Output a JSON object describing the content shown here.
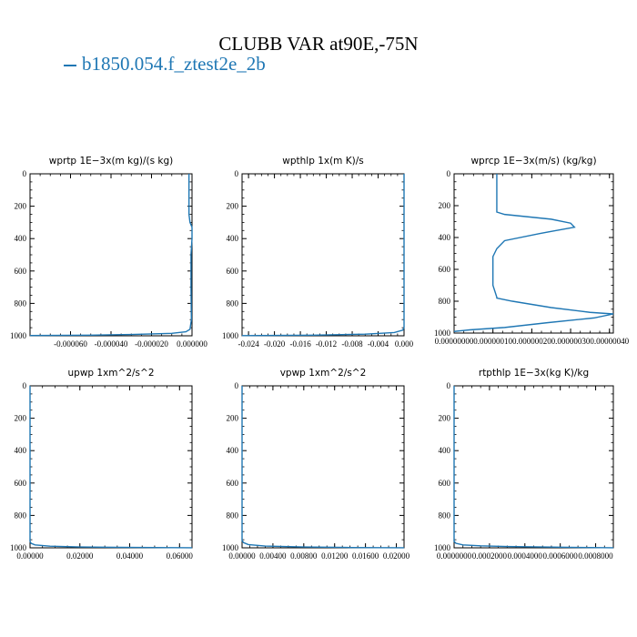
{
  "title": "CLUBB VAR at90E,-75N",
  "legend": {
    "label": "b1850.054.f_ztest2e_2b",
    "color": "#1f77b4"
  },
  "chart_data": [
    {
      "type": "line",
      "title": "wprtp  1E−3x(m kg)/(s kg)",
      "xlim": [
        -8e-05,
        0.0
      ],
      "ylim": [
        1000,
        0
      ],
      "xticks": [
        -6e-05,
        -4e-05,
        -2e-05,
        0.0
      ],
      "xtick_labels": [
        "-0.000060",
        "-0.000040",
        "-0.000020",
        "0.000000"
      ],
      "yticks": [
        0,
        200,
        400,
        600,
        800,
        1000
      ],
      "ytick_labels": [
        "0",
        "200",
        "400",
        "600",
        "800",
        "1000"
      ],
      "series": [
        {
          "x": [
            -1.5e-06,
            -1.5e-06,
            -1.5e-06,
            -1e-06,
            0.0,
            0.0,
            -5e-07,
            -5e-07,
            -3e-07,
            -1e-06,
            -3e-06,
            -1e-05,
            -3e-05,
            -5e-05,
            -8e-05
          ],
          "y": [
            0,
            100,
            250,
            300,
            330,
            400,
            500,
            700,
            900,
            960,
            975,
            985,
            992,
            996,
            998
          ]
        }
      ]
    },
    {
      "type": "line",
      "title": "wpthlp  1x(m K)/s",
      "xlim": [
        -0.025,
        0.0
      ],
      "ylim": [
        1000,
        0
      ],
      "xticks": [
        -0.024,
        -0.02,
        -0.016,
        -0.012,
        -0.008,
        -0.004,
        0.0
      ],
      "xtick_labels": [
        "-0.024",
        "-0.020",
        "-0.016",
        "-0.012",
        "-0.008",
        "-0.004",
        "0.000"
      ],
      "yticks": [
        0,
        200,
        400,
        600,
        800,
        1000
      ],
      "ytick_labels": [
        "0",
        "200",
        "400",
        "600",
        "800",
        "1000"
      ],
      "series": [
        {
          "x": [
            0.0,
            0.0,
            0.0,
            -0.0002,
            -0.0015,
            -0.006,
            -0.014,
            -0.025
          ],
          "y": [
            0,
            500,
            950,
            965,
            980,
            990,
            996,
            999
          ]
        }
      ]
    },
    {
      "type": "line",
      "title": "wprcp  1E−3x(m/s) (kg/kg)",
      "xlim": [
        0.0,
        4.1e-07
      ],
      "ylim": [
        1000,
        0
      ],
      "xticks": [
        0.0,
        1e-07,
        2e-07,
        3e-07,
        4e-07
      ],
      "xtick_labels": [
        "0.00000000",
        "0.00000010",
        "0.00000020",
        "0.00000030",
        "0.00000040"
      ],
      "yticks": [
        0,
        200,
        400,
        600,
        800,
        1000
      ],
      "ytick_labels": [
        "0",
        "200",
        "400",
        "600",
        "800",
        "1000"
      ],
      "series": [
        {
          "x": [
            1.1e-07,
            1.1e-07,
            1.1e-07,
            1.3e-07,
            2.5e-07,
            3e-07,
            3.1e-07,
            2.2e-07,
            1.3e-07,
            1.1e-07,
            1e-07,
            1e-07,
            1e-07,
            1.1e-07,
            1.1e-07,
            1.5e-07,
            2.5e-07,
            3.5e-07,
            4.1e-07,
            3.6e-07,
            2.4e-07,
            1.3e-07,
            4e-08,
            0.0
          ],
          "y": [
            0,
            150,
            240,
            255,
            285,
            310,
            335,
            375,
            420,
            470,
            520,
            600,
            700,
            775,
            780,
            800,
            840,
            870,
            880,
            905,
            935,
            965,
            980,
            990
          ]
        }
      ]
    },
    {
      "type": "line",
      "title": "upwp  1xm^2/s^2",
      "xlim": [
        0.0,
        0.065
      ],
      "ylim": [
        1000,
        0
      ],
      "xticks": [
        0.0,
        0.02,
        0.04,
        0.06
      ],
      "xtick_labels": [
        "0.00000",
        "0.02000",
        "0.04000",
        "0.06000"
      ],
      "yticks": [
        0,
        200,
        400,
        600,
        800,
        1000
      ],
      "ytick_labels": [
        "0",
        "200",
        "400",
        "600",
        "800",
        "1000"
      ],
      "series": [
        {
          "x": [
            0.0,
            0.0,
            0.0,
            0.0004,
            0.002,
            0.008,
            0.02,
            0.035,
            0.05,
            0.065
          ],
          "y": [
            0,
            500,
            960,
            972,
            982,
            990,
            995,
            997,
            998.5,
            999.5
          ]
        }
      ]
    },
    {
      "type": "line",
      "title": "vpwp  1xm^2/s^2",
      "xlim": [
        0.0,
        0.021
      ],
      "ylim": [
        1000,
        0
      ],
      "xticks": [
        0.0,
        0.004,
        0.008,
        0.012,
        0.016,
        0.02
      ],
      "xtick_labels": [
        "0.00000",
        "0.00400",
        "0.00800",
        "0.01200",
        "0.01600",
        "0.02000"
      ],
      "yticks": [
        0,
        200,
        400,
        600,
        800,
        1000
      ],
      "ytick_labels": [
        "0",
        "200",
        "400",
        "600",
        "800",
        "1000"
      ],
      "series": [
        {
          "x": [
            0.0,
            0.0,
            0.0,
            0.0002,
            0.0008,
            0.003,
            0.008,
            0.014,
            0.021
          ],
          "y": [
            0,
            500,
            955,
            968,
            980,
            989,
            995,
            998,
            999.5
          ]
        }
      ]
    },
    {
      "type": "line",
      "title": "rtpthlp  1E−3x(kg K)/kg",
      "xlim": [
        0.0,
        0.0009
      ],
      "ylim": [
        1000,
        0
      ],
      "xticks": [
        0.0,
        0.0002,
        0.0004,
        0.0006,
        0.0008
      ],
      "xtick_labels": [
        "0.0000000",
        "0.0002000",
        "0.0004000",
        "0.0006000",
        "0.0008000"
      ],
      "yticks": [
        0,
        200,
        400,
        600,
        800,
        1000
      ],
      "ytick_labels": [
        "0",
        "200",
        "400",
        "600",
        "800",
        "1000"
      ],
      "series": [
        {
          "x": [
            0.0,
            0.0,
            0.0,
            1e-05,
            5e-05,
            0.00015,
            0.0003,
            0.0005,
            0.0007,
            0.0009
          ],
          "y": [
            0,
            500,
            960,
            972,
            982,
            988,
            992,
            995,
            997.5,
            999.5
          ]
        }
      ]
    }
  ]
}
